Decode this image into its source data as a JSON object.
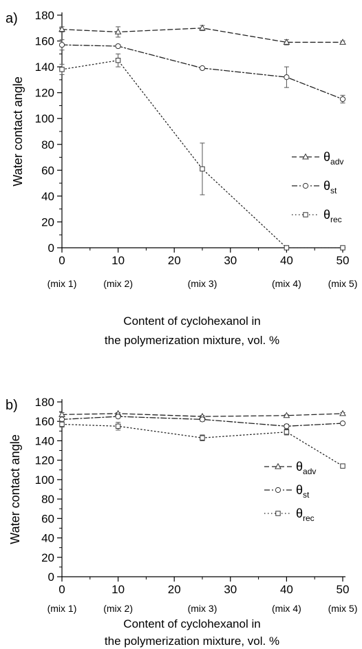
{
  "chart_data": [
    {
      "panel_label": "a)",
      "type": "line",
      "ylabel": "Water contact angle",
      "xlabel_lines": [
        "Content of cyclohexanol in",
        "the polymerization mixture, vol. %"
      ],
      "xlim": [
        0,
        50
      ],
      "ylim": [
        0,
        180
      ],
      "x_ticks": [
        0,
        10,
        20,
        30,
        40,
        50
      ],
      "y_ticks": [
        0,
        20,
        40,
        60,
        80,
        100,
        120,
        140,
        160,
        180
      ],
      "mix_labels": [
        {
          "x": 0,
          "label": "(mix 1)"
        },
        {
          "x": 10,
          "label": "(mix 2)"
        },
        {
          "x": 25,
          "label": "(mix 3)"
        },
        {
          "x": 40,
          "label": "(mix 4)"
        },
        {
          "x": 50,
          "label": "(mix 5)"
        }
      ],
      "legend_position": "right",
      "series": [
        {
          "name": "θadv",
          "symbol": "θ",
          "sub": "adv",
          "marker": "triangle",
          "dash": "dashed",
          "x": [
            0,
            10,
            25,
            40,
            50
          ],
          "y": [
            169,
            167,
            170,
            159,
            159
          ],
          "err": [
            2,
            4,
            2,
            2,
            1
          ]
        },
        {
          "name": "θst",
          "symbol": "θ",
          "sub": "st",
          "marker": "circle",
          "dash": "dashdot",
          "x": [
            0,
            10,
            25,
            40,
            50
          ],
          "y": [
            157,
            156,
            139,
            132,
            115
          ],
          "err": [
            4,
            1,
            1,
            8,
            3
          ]
        },
        {
          "name": "θrec",
          "symbol": "θ",
          "sub": "rec",
          "marker": "square",
          "dash": "dotted",
          "x": [
            0,
            10,
            25,
            40,
            50
          ],
          "y": [
            138,
            145,
            61,
            0,
            0
          ],
          "err": [
            4,
            5,
            20,
            0,
            0
          ]
        }
      ]
    },
    {
      "panel_label": "b)",
      "type": "line",
      "ylabel": "Water contact angle",
      "xlabel_lines": [
        "Content of cyclohexanol in",
        "the polymerization mixture, vol. %"
      ],
      "xlim": [
        0,
        50
      ],
      "ylim": [
        0,
        180
      ],
      "x_ticks": [
        0,
        10,
        20,
        30,
        40,
        50
      ],
      "y_ticks": [
        0,
        20,
        40,
        60,
        80,
        100,
        120,
        140,
        160,
        180
      ],
      "mix_labels": [
        {
          "x": 0,
          "label": "(mix 1)"
        },
        {
          "x": 10,
          "label": "(mix 2)"
        },
        {
          "x": 25,
          "label": "(mix 3)"
        },
        {
          "x": 40,
          "label": "(mix 4)"
        },
        {
          "x": 50,
          "label": "(mix 5)"
        }
      ],
      "legend_position": "right",
      "series": [
        {
          "name": "θadv",
          "symbol": "θ",
          "sub": "adv",
          "marker": "triangle",
          "dash": "dashed",
          "x": [
            0,
            10,
            25,
            40,
            50
          ],
          "y": [
            167,
            168,
            165,
            166,
            168
          ],
          "err": [
            2,
            1,
            1,
            1,
            1
          ]
        },
        {
          "name": "θst",
          "symbol": "θ",
          "sub": "st",
          "marker": "circle",
          "dash": "dashdot",
          "x": [
            0,
            10,
            25,
            40,
            50
          ],
          "y": [
            162,
            165,
            162,
            155,
            158
          ],
          "err": [
            1,
            1,
            2,
            2,
            1
          ]
        },
        {
          "name": "θrec",
          "symbol": "θ",
          "sub": "rec",
          "marker": "square",
          "dash": "dotted",
          "x": [
            0,
            10,
            25,
            40,
            50
          ],
          "y": [
            157,
            155,
            143,
            149,
            114
          ],
          "err": [
            3,
            4,
            3,
            3,
            1
          ]
        }
      ]
    }
  ]
}
